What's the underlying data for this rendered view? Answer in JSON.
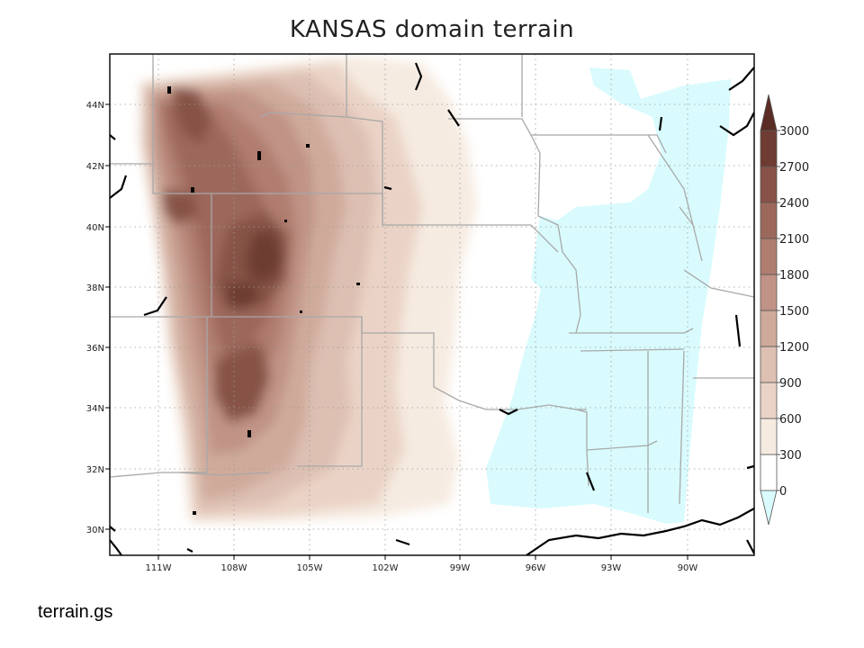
{
  "title": "KANSAS domain terrain",
  "footer": "terrain.gs",
  "colors": {
    "land_low": "#ffffff",
    "water_low": "#d9fbfd",
    "levels": [
      "#d9fbfd",
      "#ffffff",
      "#f6ebe1",
      "#ead3c6",
      "#ddc0b2",
      "#cfaa9b",
      "#c09386",
      "#b07d70",
      "#9d685c",
      "#875247",
      "#6e3c32",
      "#5a2c25"
    ],
    "borders": "#a8a8a8",
    "coast": "#000000",
    "grid": "#9a9a9a"
  },
  "chart_data": {
    "type": "map",
    "title": "KANSAS domain terrain",
    "lon_ticks": [
      "111W",
      "108W",
      "105W",
      "102W",
      "99W",
      "96W",
      "93W",
      "90W"
    ],
    "lat_ticks": [
      "44N",
      "42N",
      "40N",
      "38N",
      "36N",
      "34N",
      "32N",
      "30N"
    ],
    "colorbar": {
      "labels": [
        "3000",
        "2700",
        "2400",
        "2100",
        "1800",
        "1500",
        "1200",
        "900",
        "600",
        "300",
        "0"
      ],
      "levels": [
        0,
        300,
        600,
        900,
        1200,
        1500,
        1800,
        2100,
        2400,
        2700,
        3000
      ]
    }
  }
}
